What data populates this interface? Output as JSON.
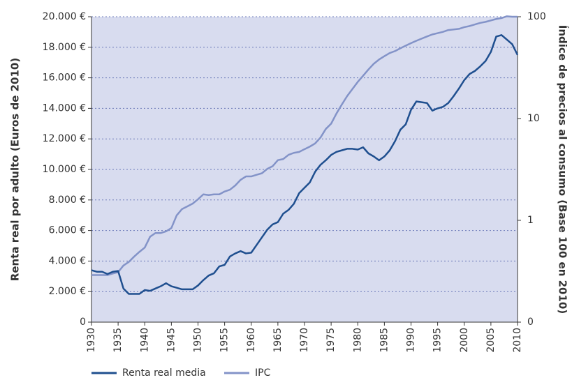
{
  "chart_data": {
    "type": "line",
    "x": [
      1930,
      1931,
      1932,
      1933,
      1934,
      1935,
      1936,
      1937,
      1938,
      1939,
      1940,
      1941,
      1942,
      1943,
      1944,
      1945,
      1946,
      1947,
      1948,
      1949,
      1950,
      1951,
      1952,
      1953,
      1954,
      1955,
      1956,
      1957,
      1958,
      1959,
      1960,
      1961,
      1962,
      1963,
      1964,
      1965,
      1966,
      1967,
      1968,
      1969,
      1970,
      1971,
      1972,
      1973,
      1974,
      1975,
      1976,
      1977,
      1978,
      1979,
      1980,
      1981,
      1982,
      1983,
      1984,
      1985,
      1986,
      1987,
      1988,
      1989,
      1990,
      1991,
      1992,
      1993,
      1994,
      1995,
      1996,
      1997,
      1998,
      1999,
      2000,
      2001,
      2002,
      2003,
      2004,
      2005,
      2006,
      2007,
      2008,
      2009,
      2010
    ],
    "xlim": [
      1930,
      2010
    ],
    "xticks": [
      1930,
      1935,
      1940,
      1945,
      1950,
      1955,
      1960,
      1965,
      1970,
      1975,
      1980,
      1985,
      1990,
      1995,
      2000,
      2005,
      2010
    ],
    "ylim": [
      0,
      20000
    ],
    "yticks": [
      0,
      {
        "value": 2000,
        "label": "2.000 €"
      },
      {
        "value": 4000,
        "label": "4.000 €"
      },
      {
        "value": 6000,
        "label": "6.000 €"
      },
      {
        "value": 8000,
        "label": "8.000 €"
      },
      {
        "value": 10000,
        "label": "10.000 €"
      },
      {
        "value": 12000,
        "label": "12.000 €"
      },
      {
        "value": 14000,
        "label": "14.000 €"
      },
      {
        "value": 16000,
        "label": "16.000 €"
      },
      {
        "value": 18000,
        "label": "18.000 €"
      },
      {
        "value": 20000,
        "label": "20.000 €"
      }
    ],
    "y2lim": [
      0.1,
      100
    ],
    "y2ticks": [
      {
        "value": 0.1,
        "label": "0"
      },
      1,
      10,
      100
    ],
    "y2scale": "log",
    "ylabel": "Renta real por adulto (Euros de 2010)",
    "y2label": "Índice de precios al consumo (Base 100 en 2010)",
    "grid": true,
    "legend": "bottom-left",
    "series": [
      {
        "name": "Renta real media",
        "color": "#1f4f8f",
        "values": [
          3400,
          3300,
          3300,
          3150,
          3300,
          3350,
          2200,
          1850,
          1850,
          1850,
          2100,
          2050,
          2200,
          2350,
          2550,
          2350,
          2250,
          2150,
          2150,
          2150,
          2400,
          2750,
          3050,
          3200,
          3650,
          3750,
          4300,
          4500,
          4650,
          4500,
          4550,
          5050,
          5550,
          6050,
          6400,
          6550,
          7100,
          7350,
          7750,
          8450,
          8800,
          9150,
          9850,
          10300,
          10600,
          10950,
          11150,
          11250,
          11350,
          11350,
          11300,
          11450,
          11050,
          10850,
          10600,
          10850,
          11250,
          11850,
          12600,
          12950,
          13900,
          14450,
          14400,
          14350,
          13850,
          14000,
          14100,
          14350,
          14800,
          15300,
          15850,
          16250,
          16450,
          16750,
          17100,
          17700,
          18700,
          18800,
          18500,
          18200,
          17500
        ]
      },
      {
        "name": "IPC",
        "color": "#8393c8",
        "axis": "y2",
        "values": [
          0.29,
          0.29,
          0.29,
          0.29,
          0.3,
          0.31,
          0.36,
          0.39,
          0.44,
          0.49,
          0.54,
          0.69,
          0.75,
          0.75,
          0.78,
          0.84,
          1.12,
          1.29,
          1.37,
          1.46,
          1.61,
          1.8,
          1.77,
          1.8,
          1.8,
          1.92,
          2.0,
          2.2,
          2.5,
          2.7,
          2.7,
          2.8,
          2.9,
          3.2,
          3.4,
          3.9,
          4.0,
          4.4,
          4.6,
          4.7,
          5.0,
          5.3,
          5.7,
          6.5,
          7.9,
          8.9,
          11.2,
          13.7,
          16.6,
          19.5,
          22.9,
          26.3,
          30.3,
          34.5,
          38,
          41,
          44,
          46,
          49,
          52,
          55,
          58,
          61,
          64,
          67,
          69,
          71,
          74,
          75,
          76,
          79,
          81,
          84,
          87,
          89,
          92,
          95,
          97,
          101,
          100,
          100
        ]
      }
    ]
  }
}
